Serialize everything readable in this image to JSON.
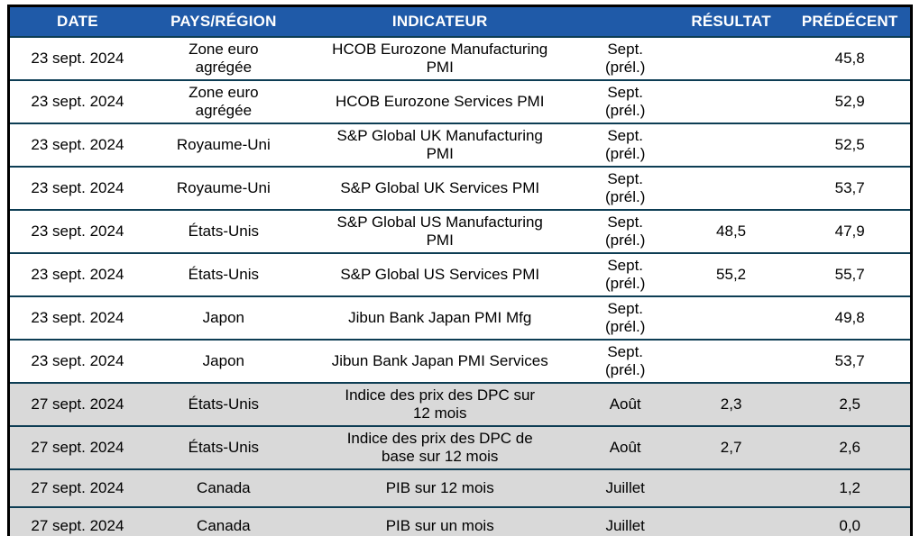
{
  "colors": {
    "header_bg": "#1F5AA8",
    "header_text": "#FFFFFF",
    "row_bg": "#FFFFFF",
    "row_shaded_bg": "#D9D9D9",
    "row_separator": "#0D3D54",
    "outer_border": "#000000",
    "bottom_bar": "#17375D"
  },
  "table": {
    "columns": [
      {
        "key": "date",
        "label": "DATE"
      },
      {
        "key": "region",
        "label": "PAYS/RÉGION"
      },
      {
        "key": "indicator",
        "label": "INDICATEUR"
      },
      {
        "key": "period",
        "label": ""
      },
      {
        "key": "result",
        "label": "RÉSULTAT"
      },
      {
        "key": "previous",
        "label": "PRÉDÉCENT"
      }
    ],
    "rows": [
      {
        "date": "23 sept. 2024",
        "region": "Zone euro\nagrégée",
        "indicator": "HCOB Eurozone Manufacturing\nPMI",
        "period": "Sept.\n(prél.)",
        "result": "",
        "previous": "45,8",
        "shaded": false
      },
      {
        "date": "23 sept. 2024",
        "region": "Zone euro\nagrégée",
        "indicator": "HCOB Eurozone Services PMI",
        "period": "Sept.\n(prél.)",
        "result": "",
        "previous": "52,9",
        "shaded": false
      },
      {
        "date": "23 sept. 2024",
        "region": "Royaume-Uni",
        "indicator": "S&P Global UK Manufacturing\nPMI",
        "period": "Sept.\n(prél.)",
        "result": "",
        "previous": "52,5",
        "shaded": false
      },
      {
        "date": "23 sept. 2024",
        "region": "Royaume-Uni",
        "indicator": "S&P Global UK Services PMI",
        "period": "Sept.\n(prél.)",
        "result": "",
        "previous": "53,7",
        "shaded": false
      },
      {
        "date": "23 sept. 2024",
        "region": "États-Unis",
        "indicator": "S&P Global US Manufacturing\nPMI",
        "period": "Sept.\n(prél.)",
        "result": "48,5",
        "previous": "47,9",
        "shaded": false
      },
      {
        "date": "23 sept. 2024",
        "region": "États-Unis",
        "indicator": "S&P Global US Services PMI",
        "period": "Sept.\n(prél.)",
        "result": "55,2",
        "previous": "55,7",
        "shaded": false
      },
      {
        "date": "23 sept. 2024",
        "region": "Japon",
        "indicator": "Jibun Bank Japan PMI Mfg",
        "period": "Sept.\n(prél.)",
        "result": "",
        "previous": "49,8",
        "shaded": false
      },
      {
        "date": "23 sept. 2024",
        "region": "Japon",
        "indicator": "Jibun Bank Japan PMI Services",
        "period": "Sept.\n(prél.)",
        "result": "",
        "previous": "53,7",
        "shaded": false
      },
      {
        "date": "27 sept. 2024",
        "region": "États-Unis",
        "indicator": "Indice des prix des DPC sur\n12 mois",
        "period": "Août",
        "result": "2,3",
        "previous": "2,5",
        "shaded": true
      },
      {
        "date": "27 sept. 2024",
        "region": "États-Unis",
        "indicator": "Indice des prix des DPC de\nbase sur 12 mois",
        "period": "Août",
        "result": "2,7",
        "previous": "2,6",
        "shaded": true
      },
      {
        "date": "27 sept. 2024",
        "region": "Canada",
        "indicator": "PIB sur 12 mois",
        "period": "Juillet",
        "result": "",
        "previous": "1,2",
        "shaded": true
      },
      {
        "date": "27 sept. 2024",
        "region": "Canada",
        "indicator": "PIB sur un mois",
        "period": "Juillet",
        "result": "",
        "previous": "0,0",
        "shaded": true
      }
    ]
  }
}
